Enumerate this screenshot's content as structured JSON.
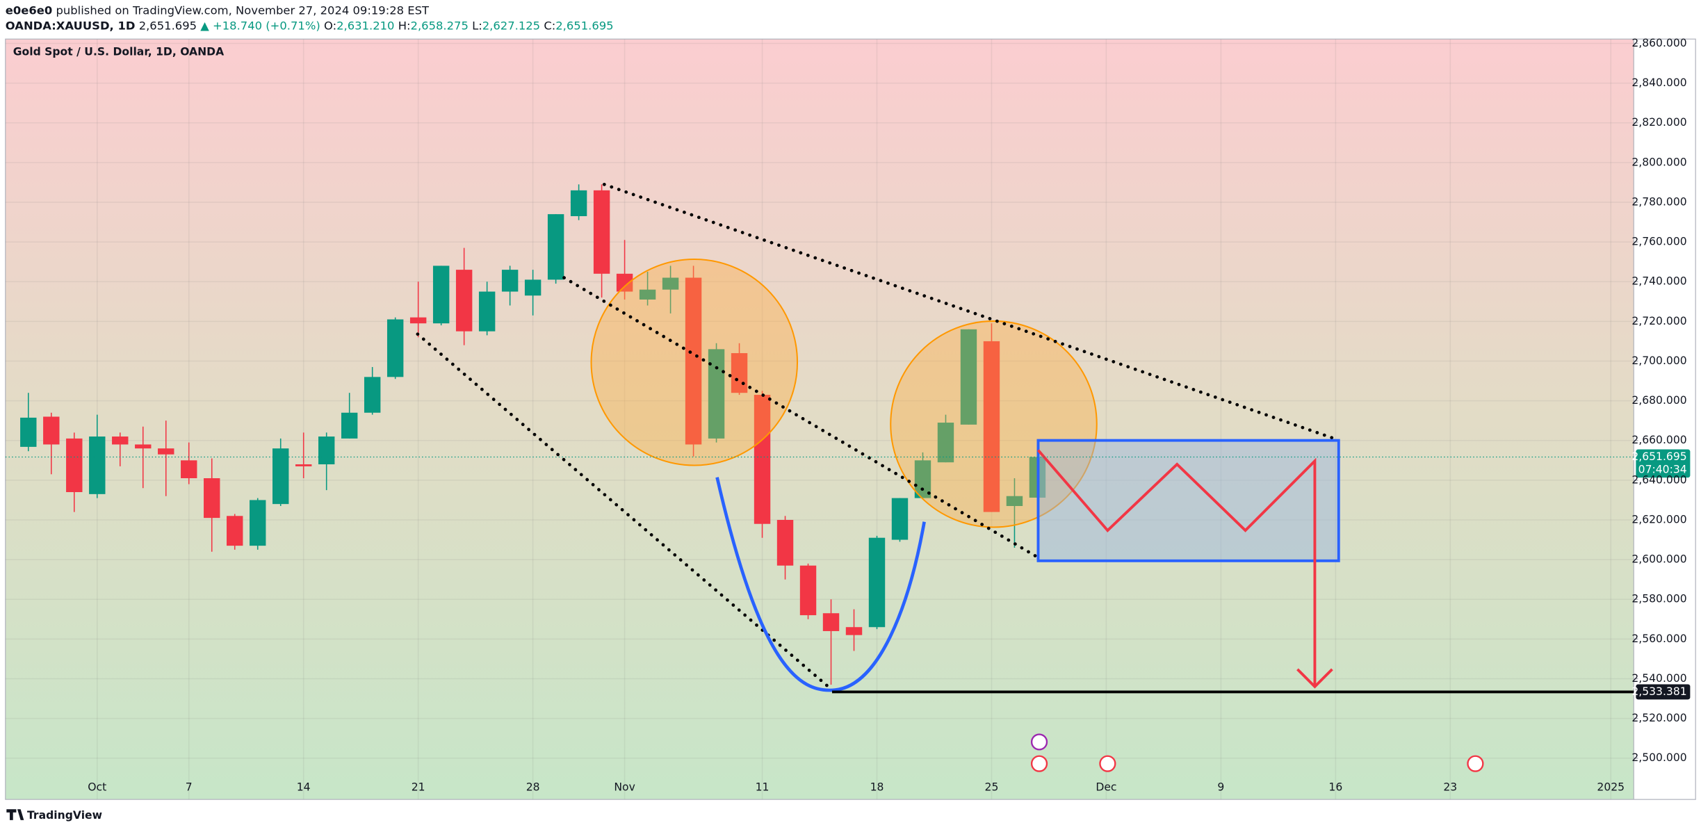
{
  "header": {
    "author": "e0e6e0",
    "published": "published on TradingView.com, November 27, 2024 09:19:28 EST",
    "symbol": "OANDA:XAUUSD, 1D",
    "price": "2,651.695",
    "change": "▲ +18.740 (+0.71%)",
    "o_label": "O:",
    "o": "2,631.210",
    "h_label": "H:",
    "h": "2,658.275",
    "l_label": "L:",
    "l": "2,627.125",
    "c_label": "C:",
    "c": "2,651.695"
  },
  "footer": {
    "brand": "TradingView"
  },
  "chart_data": {
    "type": "candlestick",
    "title": "Gold Spot / U.S. Dollar, 1D, OANDA",
    "up_color": "#089981",
    "down_color": "#f23645",
    "open": [
      2656.8,
      2672,
      2661,
      2633,
      2662,
      2658,
      2656,
      2650,
      2641,
      2622,
      2607,
      2628,
      2648,
      2648,
      2661,
      2674,
      2692,
      2722,
      2719,
      2746,
      2715,
      2735,
      2733,
      2741,
      2773,
      2786,
      2744,
      2731,
      2736,
      2742,
      2661,
      2704,
      2683,
      2620,
      2597,
      2573,
      2566,
      2566,
      2610,
      2631,
      2649,
      2668,
      2710,
      2627,
      2631.21
    ],
    "high": [
      2684,
      2674,
      2664,
      2673,
      2664,
      2667,
      2670,
      2659,
      2651,
      2623,
      2631,
      2661,
      2664,
      2664,
      2684,
      2697,
      2722,
      2740,
      2748,
      2757,
      2740,
      2748,
      2746,
      2774,
      2789,
      2789,
      2761,
      2745,
      2748,
      2748,
      2709,
      2709,
      2685,
      2622,
      2598,
      2580,
      2575,
      2612,
      2631,
      2654,
      2673,
      2716,
      2719,
      2641,
      2658.275
    ],
    "low": [
      2654.6,
      2643,
      2624,
      2631,
      2647,
      2636,
      2632,
      2638,
      2604,
      2605,
      2605,
      2627,
      2641,
      2635,
      2661,
      2673,
      2691,
      2712,
      2718,
      2708,
      2713,
      2728,
      2723,
      2739,
      2771,
      2732,
      2731,
      2728,
      2724,
      2652,
      2659,
      2683,
      2611,
      2590,
      2570,
      2537,
      2554,
      2565,
      2609,
      2631,
      2649,
      2668,
      2624,
      2606,
      2627.125
    ],
    "close": [
      2671.5,
      2658,
      2634,
      2662,
      2658,
      2656,
      2653,
      2641,
      2621,
      2607,
      2630,
      2656,
      2647,
      2662,
      2674,
      2692,
      2721,
      2719,
      2748,
      2715,
      2735,
      2746,
      2741,
      2774,
      2786,
      2744,
      2735,
      2736,
      2742,
      2658,
      2706,
      2684,
      2618,
      2597,
      2572,
      2564,
      2562,
      2611,
      2631,
      2650,
      2669,
      2716,
      2624,
      2632,
      2651.695
    ],
    "xlim": [
      -1,
      70
    ],
    "xticks": [
      {
        "value": 3,
        "label": "Oct"
      },
      {
        "value": 7,
        "label": "7"
      },
      {
        "value": 12,
        "label": "14"
      },
      {
        "value": 17,
        "label": "21"
      },
      {
        "value": 22,
        "label": "28"
      },
      {
        "value": 26,
        "label": "Nov"
      },
      {
        "value": 32,
        "label": "11"
      },
      {
        "value": 37,
        "label": "18"
      },
      {
        "value": 42,
        "label": "25"
      },
      {
        "value": 47,
        "label": "Dec"
      },
      {
        "value": 52,
        "label": "9"
      },
      {
        "value": 57,
        "label": "16"
      },
      {
        "value": 62,
        "label": "23"
      },
      {
        "value": 69,
        "label": "2025"
      }
    ],
    "ylim": [
      2479.2,
      2862.2
    ],
    "yticks": [
      {
        "value": 2500,
        "label": "2,500.000"
      },
      {
        "value": 2520,
        "label": "2,520.000"
      },
      {
        "value": 2540,
        "label": "2,540.000"
      },
      {
        "value": 2560,
        "label": "2,560.000"
      },
      {
        "value": 2580,
        "label": "2,580.000"
      },
      {
        "value": 2600,
        "label": "2,600.000"
      },
      {
        "value": 2620,
        "label": "2,620.000"
      },
      {
        "value": 2640,
        "label": "2,640.000"
      },
      {
        "value": 2660,
        "label": "2,660.000"
      },
      {
        "value": 2680,
        "label": "2,680.000"
      },
      {
        "value": 2700,
        "label": "2,700.000"
      },
      {
        "value": 2720,
        "label": "2,720.000"
      },
      {
        "value": 2740,
        "label": "2,740.000"
      },
      {
        "value": 2760,
        "label": "2,760.000"
      },
      {
        "value": 2780,
        "label": "2,780.000"
      },
      {
        "value": 2800,
        "label": "2,800.000"
      },
      {
        "value": 2820,
        "label": "2,820.000"
      },
      {
        "value": 2840,
        "label": "2,840.000"
      },
      {
        "value": 2860,
        "label": "2,860.000"
      }
    ],
    "grid": true,
    "last_price": {
      "value": 2651.695,
      "label": "2,651.695"
    },
    "countdown": "07:40:34",
    "hline": {
      "value": 2533.381,
      "label": "2,533.381"
    }
  }
}
